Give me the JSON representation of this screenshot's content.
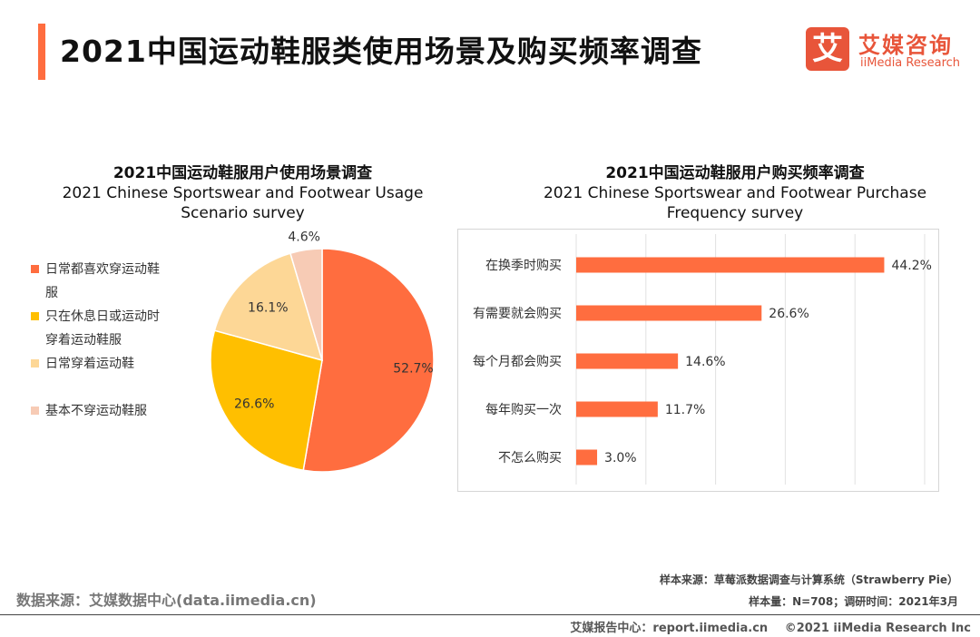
{
  "page": {
    "title": "2021中国运动鞋服类使用场景及购买频率调查",
    "logo": {
      "mark": "艾",
      "cn": "艾媒咨询",
      "en": "iiMedia Research"
    }
  },
  "chart_data": [
    {
      "type": "pie",
      "title": "2021中国运动鞋服用户使用场景调查",
      "subtitle": "2021 Chinese Sportswear and Footwear Usage Scenario survey",
      "categories": [
        "日常都喜欢穿运动鞋服",
        "只在休息日或运动时穿着运动鞋服",
        "日常穿着运动鞋",
        "基本不穿运动鞋服"
      ],
      "legend_lines": [
        [
          "日常都喜欢穿运动鞋",
          "服"
        ],
        [
          "只在休息日或运动时",
          "穿着运动鞋服"
        ],
        [
          "日常穿着运动鞋"
        ],
        [
          "基本不穿运动鞋服"
        ]
      ],
      "values": [
        52.7,
        26.6,
        16.1,
        4.6
      ],
      "labels": [
        "52.7%",
        "26.6%",
        "16.1%",
        "4.6%"
      ],
      "colors": [
        "#ff6d3f",
        "#ffbf00",
        "#fdd796",
        "#f7cbb5"
      ],
      "legend_position": "left"
    },
    {
      "type": "bar",
      "orientation": "horizontal",
      "title": "2021中国运动鞋服用户购买频率调查",
      "subtitle": "2021 Chinese Sportswear and Footwear Purchase Frequency survey",
      "categories": [
        "在换季时购买",
        "有需要就会购买",
        "每个月都会购买",
        "每年购买一次",
        "不怎么购买"
      ],
      "values": [
        44.2,
        26.6,
        14.6,
        11.7,
        3.0
      ],
      "labels": [
        "44.2%",
        "26.6%",
        "14.6%",
        "11.7%",
        "3.0%"
      ],
      "xlim": [
        0,
        50
      ],
      "color": "#ff6d3f",
      "grid": true
    }
  ],
  "source": {
    "left": "数据来源：艾媒数据中心(data.iimedia.cn)",
    "sample_source": "样本来源：草莓派数据调查与计算系统（Strawberry Pie）",
    "sample_info": "样本量：N=708；调研时间：2021年3月"
  },
  "footer": {
    "center": "艾媒报告中心：report.iimedia.cn",
    "copyright": "©2021  iiMedia Research  Inc"
  }
}
